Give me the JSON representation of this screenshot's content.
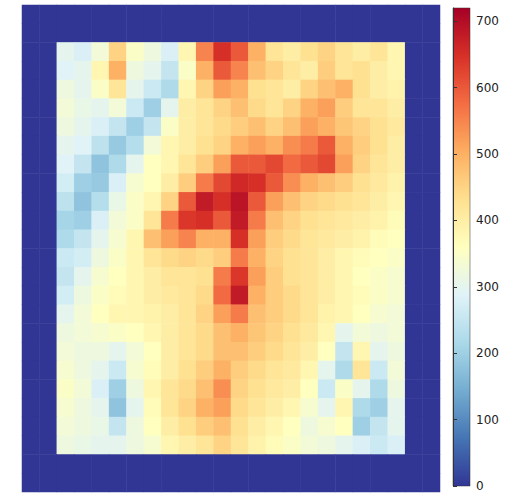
{
  "chart_data": {
    "type": "heatmap",
    "tick_labels": false,
    "cells": [
      [
        0,
        0,
        0,
        0,
        0,
        0,
        0,
        0,
        0,
        0,
        0,
        0,
        0,
        0,
        0,
        0,
        0,
        0,
        0,
        0,
        0,
        0,
        0,
        0
      ],
      [
        0,
        0,
        0,
        0,
        0,
        0,
        0,
        0,
        0,
        0,
        0,
        0,
        0,
        0,
        0,
        0,
        0,
        0,
        0,
        0,
        0,
        0,
        0,
        0
      ],
      [
        0,
        0,
        300,
        280,
        330,
        450,
        350,
        320,
        280,
        380,
        550,
        650,
        600,
        500,
        420,
        400,
        430,
        450,
        420,
        400,
        420,
        380,
        0,
        0
      ],
      [
        0,
        0,
        290,
        300,
        380,
        500,
        320,
        300,
        250,
        350,
        500,
        600,
        550,
        480,
        450,
        420,
        400,
        460,
        420,
        430,
        400,
        380,
        0,
        0
      ],
      [
        0,
        0,
        320,
        300,
        350,
        420,
        300,
        260,
        220,
        380,
        450,
        520,
        500,
        430,
        420,
        400,
        450,
        480,
        500,
        430,
        400,
        390,
        0,
        0
      ],
      [
        0,
        0,
        330,
        310,
        300,
        330,
        260,
        200,
        300,
        400,
        420,
        450,
        480,
        440,
        420,
        450,
        500,
        520,
        460,
        420,
        420,
        400,
        0,
        0
      ],
      [
        0,
        0,
        320,
        300,
        280,
        250,
        200,
        250,
        350,
        400,
        420,
        440,
        460,
        480,
        450,
        480,
        520,
        500,
        470,
        450,
        430,
        410,
        0,
        0
      ],
      [
        0,
        0,
        300,
        290,
        240,
        190,
        230,
        330,
        380,
        400,
        430,
        450,
        500,
        520,
        500,
        540,
        560,
        600,
        500,
        460,
        430,
        400,
        0,
        0
      ],
      [
        0,
        0,
        290,
        250,
        180,
        220,
        300,
        360,
        380,
        420,
        460,
        520,
        600,
        600,
        620,
        580,
        600,
        620,
        520,
        450,
        420,
        400,
        0,
        0
      ],
      [
        0,
        0,
        270,
        200,
        190,
        280,
        340,
        360,
        400,
        460,
        560,
        620,
        660,
        650,
        600,
        540,
        500,
        480,
        460,
        430,
        410,
        390,
        0,
        0
      ],
      [
        0,
        0,
        240,
        180,
        230,
        310,
        350,
        380,
        450,
        600,
        680,
        650,
        690,
        600,
        520,
        480,
        450,
        440,
        430,
        420,
        400,
        380,
        0,
        0
      ],
      [
        0,
        0,
        210,
        200,
        280,
        330,
        350,
        420,
        560,
        640,
        650,
        600,
        680,
        560,
        480,
        450,
        430,
        420,
        410,
        400,
        390,
        370,
        0,
        0
      ],
      [
        0,
        0,
        220,
        250,
        300,
        340,
        380,
        480,
        520,
        550,
        500,
        500,
        650,
        520,
        460,
        440,
        420,
        410,
        400,
        390,
        370,
        360,
        0,
        0
      ],
      [
        0,
        0,
        260,
        270,
        320,
        350,
        380,
        420,
        440,
        450,
        440,
        460,
        560,
        500,
        450,
        430,
        420,
        400,
        380,
        370,
        360,
        350,
        0,
        0
      ],
      [
        0,
        0,
        250,
        300,
        340,
        360,
        380,
        400,
        420,
        420,
        430,
        560,
        640,
        520,
        460,
        430,
        420,
        400,
        380,
        360,
        350,
        340,
        0,
        0
      ],
      [
        0,
        0,
        270,
        320,
        350,
        370,
        380,
        400,
        410,
        420,
        440,
        580,
        680,
        500,
        460,
        440,
        420,
        400,
        380,
        370,
        350,
        340,
        0,
        0
      ],
      [
        0,
        0,
        300,
        330,
        360,
        380,
        380,
        390,
        400,
        420,
        450,
        520,
        560,
        480,
        460,
        440,
        420,
        390,
        380,
        360,
        340,
        330,
        0,
        0
      ],
      [
        0,
        0,
        320,
        330,
        340,
        350,
        360,
        380,
        400,
        420,
        440,
        480,
        500,
        470,
        450,
        430,
        410,
        380,
        300,
        330,
        320,
        330,
        0,
        0
      ],
      [
        0,
        0,
        330,
        320,
        320,
        300,
        330,
        360,
        400,
        420,
        440,
        480,
        480,
        460,
        440,
        420,
        400,
        360,
        250,
        380,
        300,
        320,
        0,
        0
      ],
      [
        0,
        0,
        340,
        320,
        300,
        260,
        340,
        370,
        400,
        430,
        460,
        500,
        460,
        440,
        420,
        410,
        380,
        300,
        220,
        420,
        260,
        330,
        0,
        0
      ],
      [
        0,
        0,
        350,
        330,
        280,
        200,
        320,
        380,
        420,
        440,
        480,
        540,
        450,
        430,
        410,
        400,
        360,
        260,
        350,
        300,
        220,
        320,
        0,
        0
      ],
      [
        0,
        0,
        340,
        320,
        300,
        180,
        300,
        370,
        420,
        450,
        500,
        520,
        440,
        420,
        400,
        380,
        340,
        300,
        380,
        220,
        200,
        300,
        0,
        0
      ],
      [
        0,
        0,
        330,
        320,
        310,
        250,
        320,
        360,
        400,
        430,
        460,
        480,
        430,
        400,
        380,
        360,
        320,
        340,
        360,
        200,
        250,
        300,
        0,
        0
      ],
      [
        0,
        0,
        320,
        310,
        300,
        300,
        320,
        340,
        380,
        400,
        420,
        450,
        420,
        390,
        370,
        350,
        330,
        320,
        300,
        280,
        260,
        280,
        0,
        0
      ],
      [
        0,
        0,
        0,
        0,
        0,
        0,
        0,
        0,
        0,
        0,
        0,
        0,
        0,
        0,
        0,
        0,
        0,
        0,
        0,
        0,
        0,
        0,
        0,
        0
      ],
      [
        0,
        0,
        0,
        0,
        0,
        0,
        0,
        0,
        0,
        0,
        0,
        0,
        0,
        0,
        0,
        0,
        0,
        0,
        0,
        0,
        0,
        0,
        0,
        0
      ]
    ],
    "colorbar": {
      "range": [
        0,
        720
      ],
      "ticks": [
        0,
        100,
        200,
        300,
        400,
        500,
        600,
        700
      ]
    }
  }
}
